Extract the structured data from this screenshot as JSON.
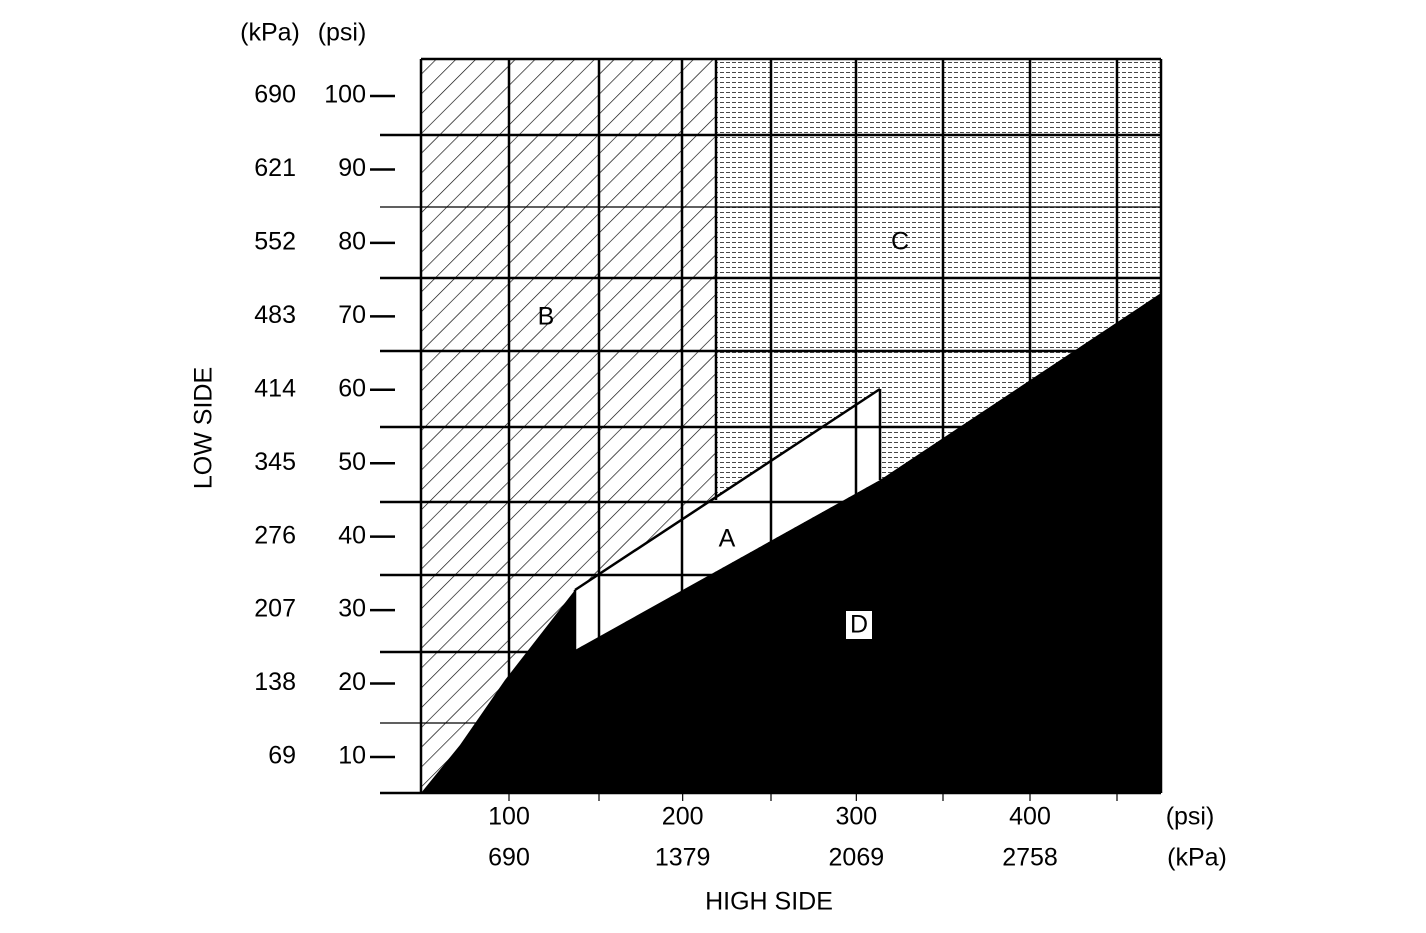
{
  "y_axis": {
    "title": "LOW SIDE",
    "unit_kpa": "(kPa)",
    "unit_psi": "(psi)",
    "ticks": [
      {
        "kpa": 690,
        "psi": 100
      },
      {
        "kpa": 621,
        "psi": 90
      },
      {
        "kpa": 552,
        "psi": 80
      },
      {
        "kpa": 483,
        "psi": 70
      },
      {
        "kpa": 414,
        "psi": 60
      },
      {
        "kpa": 345,
        "psi": 50
      },
      {
        "kpa": 276,
        "psi": 40
      },
      {
        "kpa": 207,
        "psi": 30
      },
      {
        "kpa": 138,
        "psi": 20
      },
      {
        "kpa": 69,
        "psi": 10
      }
    ]
  },
  "x_axis": {
    "title": "HIGH SIDE",
    "unit_psi": "(psi)",
    "unit_kpa": "(kPa)",
    "ticks": [
      {
        "psi": 100,
        "kpa": 690
      },
      {
        "psi": 200,
        "kpa": 1379
      },
      {
        "psi": 300,
        "kpa": 2069
      },
      {
        "psi": 400,
        "kpa": 2758
      }
    ]
  },
  "regions": [
    "A",
    "B",
    "C",
    "D"
  ]
}
